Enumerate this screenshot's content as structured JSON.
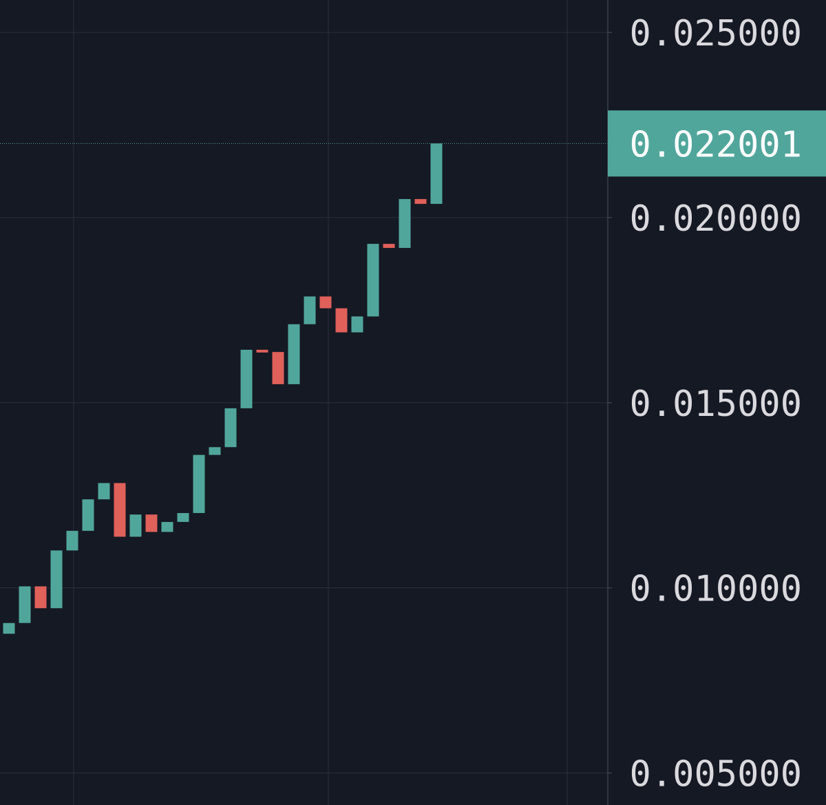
{
  "chart_data": {
    "type": "candlestick",
    "title": "",
    "xlabel": "",
    "ylabel": "",
    "ylim": [
      0.004135,
      0.025876
    ],
    "grid": true,
    "y_ticks": [
      {
        "value": 0.025,
        "label": "0.025000"
      },
      {
        "value": 0.02,
        "label": "0.020000"
      },
      {
        "value": 0.015,
        "label": "0.015000"
      },
      {
        "value": 0.01,
        "label": "0.010000"
      },
      {
        "value": 0.005,
        "label": "0.005000"
      }
    ],
    "last_price": {
      "value": 0.022001,
      "label": "0.022001"
    },
    "colors": {
      "background": "#151924",
      "grid": "#2a2f3b",
      "axis_line": "#3a3f4c",
      "up": "#51a69b",
      "down": "#e0605a",
      "tick_text": "#d9d9de",
      "last_price_bg": "#51a69b",
      "last_price_text": "#ffffff"
    },
    "candles": [
      {
        "open": 0.00876,
        "close": 0.00905
      },
      {
        "open": 0.00905,
        "close": 0.01004
      },
      {
        "open": 0.01004,
        "close": 0.00945
      },
      {
        "open": 0.00945,
        "close": 0.01101
      },
      {
        "open": 0.01101,
        "close": 0.01154
      },
      {
        "open": 0.01154,
        "close": 0.01239
      },
      {
        "open": 0.01239,
        "close": 0.01283
      },
      {
        "open": 0.01283,
        "close": 0.01138
      },
      {
        "open": 0.01138,
        "close": 0.01198
      },
      {
        "open": 0.01198,
        "close": 0.01151
      },
      {
        "open": 0.01151,
        "close": 0.01178
      },
      {
        "open": 0.01178,
        "close": 0.01202
      },
      {
        "open": 0.01202,
        "close": 0.01359
      },
      {
        "open": 0.01359,
        "close": 0.0138
      },
      {
        "open": 0.0138,
        "close": 0.01485
      },
      {
        "open": 0.01485,
        "close": 0.01643
      },
      {
        "open": 0.01643,
        "close": 0.01637
      },
      {
        "open": 0.01637,
        "close": 0.0155
      },
      {
        "open": 0.0155,
        "close": 0.01712
      },
      {
        "open": 0.01712,
        "close": 0.01787
      },
      {
        "open": 0.01787,
        "close": 0.01755
      },
      {
        "open": 0.01755,
        "close": 0.0169
      },
      {
        "open": 0.0169,
        "close": 0.01733
      },
      {
        "open": 0.01733,
        "close": 0.01929
      },
      {
        "open": 0.01929,
        "close": 0.01918
      },
      {
        "open": 0.01918,
        "close": 0.0205
      },
      {
        "open": 0.0205,
        "close": 0.02037
      },
      {
        "open": 0.02037,
        "close": 0.022001
      }
    ]
  }
}
